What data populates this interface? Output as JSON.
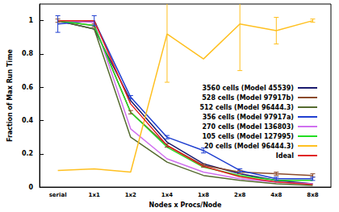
{
  "chart_data": {
    "type": "line",
    "x_label": "Nodes x Procs/Node",
    "y_label": "Fraction of Max Run Time",
    "categories": [
      "serial",
      "1x1",
      "1x2",
      "1x4",
      "1x8",
      "2x8",
      "4x8",
      "8x8"
    ],
    "ylim": [
      0,
      1.1
    ],
    "yticks": [
      0,
      0.2,
      0.4,
      0.6,
      0.8,
      1
    ],
    "grid": false,
    "legend": "right",
    "series": [
      {
        "name": "3560 cells (Model 45539)",
        "color": "#1a1a6e",
        "values": [
          1.0,
          0.95,
          0.52,
          0.27,
          0.14,
          0.08,
          0.04,
          0.02
        ]
      },
      {
        "name": "528 cells (Model 97917b)",
        "color": "#8b4a2b",
        "values": [
          1.0,
          0.97,
          0.45,
          0.25,
          0.13,
          0.09,
          0.08,
          0.07
        ],
        "errors": [
          0.01,
          0.01,
          0.01,
          0.01,
          0.01,
          0.01,
          0.01,
          0.01
        ]
      },
      {
        "name": "512 cells (Model 96444.3)",
        "color": "#556b2f",
        "values": [
          1.0,
          0.95,
          0.3,
          0.15,
          0.07,
          0.04,
          0.02,
          0.01
        ]
      },
      {
        "name": "356 cells (Model 97917a)",
        "color": "#1f3fd0",
        "values": [
          0.98,
          1.0,
          0.54,
          0.3,
          0.22,
          0.1,
          0.05,
          0.05
        ],
        "errors": [
          0.05,
          0.03,
          0.01,
          0.01,
          0.015,
          0.01,
          0.01,
          0.01
        ]
      },
      {
        "name": "270 cells (Model 136803)",
        "color": "#d070f0",
        "values": [
          1.0,
          0.99,
          0.35,
          0.17,
          0.09,
          0.05,
          0.03,
          0.02
        ]
      },
      {
        "name": "105 cells (Model 127995)",
        "color": "#22dd22",
        "values": [
          1.0,
          0.97,
          0.45,
          0.24,
          0.12,
          0.07,
          0.04,
          0.04
        ]
      },
      {
        "name": "20 cells (Model 96444.3)",
        "color": "#ffc020",
        "values": [
          0.1,
          0.11,
          0.09,
          0.92,
          0.77,
          0.98,
          0.94,
          1.0
        ],
        "errors": [
          0.0,
          0.0,
          0.0,
          0.29,
          0.0,
          0.28,
          0.08,
          0.01
        ]
      },
      {
        "name": "Ideal",
        "color": "#e02020",
        "values": [
          1.0,
          1.0,
          0.5,
          0.25,
          0.125,
          0.0625,
          0.03125,
          0.015625
        ]
      }
    ]
  }
}
